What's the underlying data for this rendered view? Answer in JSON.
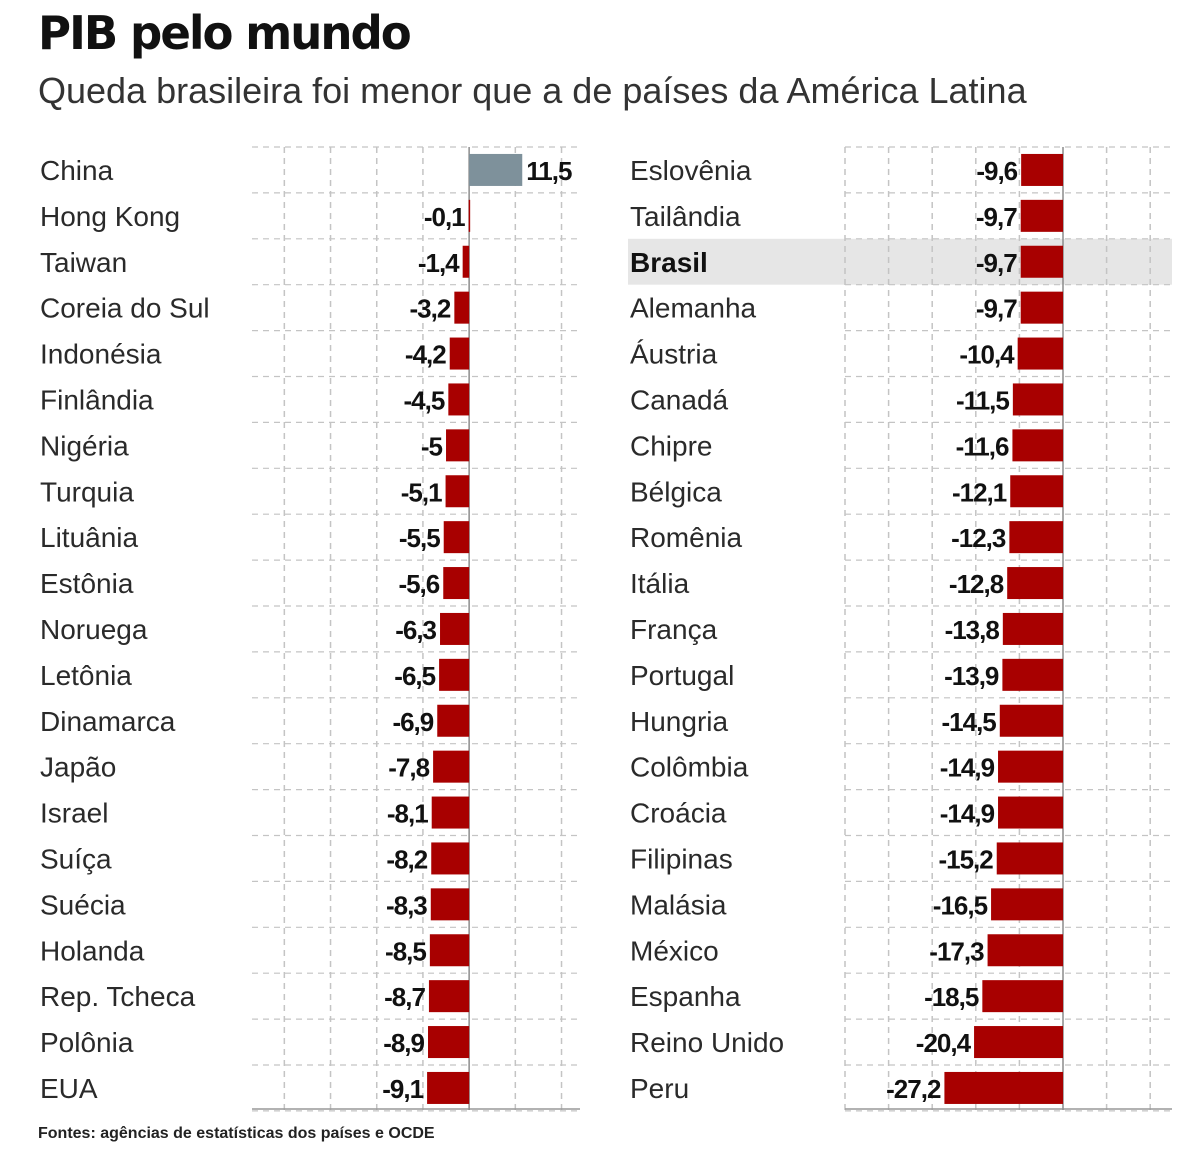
{
  "header": {
    "title": "PIB pelo mundo",
    "subtitle": "Queda brasileira foi menor que a de países da América Latina"
  },
  "footer": {
    "source": "Fontes: agências de estatísticas dos países e OCDE"
  },
  "colors": {
    "negative": "#a80000",
    "positive": "#7e919b",
    "highlight_row": "#e6e6e6",
    "grid": "#c4c4c4"
  },
  "chart_data": [
    {
      "type": "bar",
      "orientation": "horizontal",
      "categories": [
        "China",
        "Hong Kong",
        "Taiwan",
        "Coreia do Sul",
        "Indonésia",
        "Finlândia",
        "Nigéria",
        "Turquia",
        "Lituânia",
        "Estônia",
        "Noruega",
        "Letônia",
        "Dinamarca",
        "Japão",
        "Israel",
        "Suíça",
        "Suécia",
        "Holanda",
        "Rep. Tcheca",
        "Polônia",
        "EUA"
      ],
      "values": [
        11.5,
        -0.1,
        -1.4,
        -3.2,
        -4.2,
        -4.5,
        -5,
        -5.1,
        -5.5,
        -5.6,
        -6.3,
        -6.5,
        -6.9,
        -7.8,
        -8.1,
        -8.2,
        -8.3,
        -8.5,
        -8.7,
        -8.9,
        -9.1
      ],
      "value_labels": [
        "11,5",
        "-0,1",
        "-1,4",
        "-3,2",
        "-4,2",
        "-4,5",
        "-5",
        "-5,1",
        "-5,5",
        "-5,6",
        "-6,3",
        "-6,5",
        "-6,9",
        "-7,8",
        "-8,1",
        "-8,2",
        "-8,3",
        "-8,5",
        "-8,7",
        "-8,9",
        "-9,1"
      ],
      "highlight": [],
      "xlim": [
        -47,
        24
      ],
      "grid": true
    },
    {
      "type": "bar",
      "orientation": "horizontal",
      "categories": [
        "Eslovênia",
        "Tailândia",
        "Brasil",
        "Alemanha",
        "Áustria",
        "Canadá",
        "Chipre",
        "Bélgica",
        "Romênia",
        "Itália",
        "França",
        "Portugal",
        "Hungria",
        "Colômbia",
        "Croácia",
        "Filipinas",
        "Malásia",
        "México",
        "Espanha",
        "Reino Unido",
        "Peru"
      ],
      "values": [
        -9.6,
        -9.7,
        -9.7,
        -9.7,
        -10.4,
        -11.5,
        -11.6,
        -12.1,
        -12.3,
        -12.8,
        -13.8,
        -13.9,
        -14.5,
        -14.9,
        -14.9,
        -15.2,
        -16.5,
        -17.3,
        -18.5,
        -20.4,
        -27.2
      ],
      "value_labels": [
        "-9,6",
        "-9,7",
        "-9,7",
        "-9,7",
        "-10,4",
        "-11,5",
        "-11,6",
        "-12,1",
        "-12,3",
        "-12,8",
        "-13,8",
        "-13,9",
        "-14,5",
        "-14,9",
        "-14,9",
        "-15,2",
        "-16,5",
        "-17,3",
        "-18,5",
        "-20,4",
        "-27,2"
      ],
      "highlight": [
        "Brasil"
      ],
      "xlim": [
        -50,
        25
      ],
      "grid": true
    }
  ]
}
